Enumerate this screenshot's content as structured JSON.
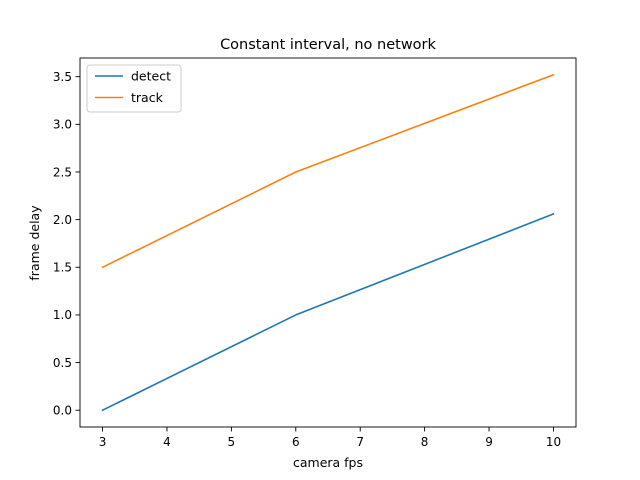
{
  "chart_data": {
    "type": "line",
    "title": "Constant interval, no network",
    "xlabel": "camera fps",
    "ylabel": "frame delay",
    "xlim": [
      2.65,
      10.35
    ],
    "ylim": [
      -0.176,
      3.696
    ],
    "grid": false,
    "legend_position": "top-left",
    "x_ticks": [
      3,
      4,
      5,
      6,
      7,
      8,
      9,
      10
    ],
    "x_tick_labels": [
      "3",
      "4",
      "5",
      "6",
      "7",
      "8",
      "9",
      "10"
    ],
    "y_ticks": [
      0.0,
      0.5,
      1.0,
      1.5,
      2.0,
      2.5,
      3.0,
      3.5
    ],
    "y_tick_labels": [
      "0.0",
      "0.5",
      "1.0",
      "1.5",
      "2.0",
      "2.5",
      "3.0",
      "3.5"
    ],
    "series": [
      {
        "name": "detect",
        "color": "#1f77b4",
        "x": [
          3,
          6,
          10
        ],
        "y": [
          0.0,
          1.0,
          2.06
        ]
      },
      {
        "name": "track",
        "color": "#ff7f0e",
        "x": [
          3,
          6,
          10
        ],
        "y": [
          1.5,
          2.5,
          3.52
        ]
      }
    ]
  }
}
